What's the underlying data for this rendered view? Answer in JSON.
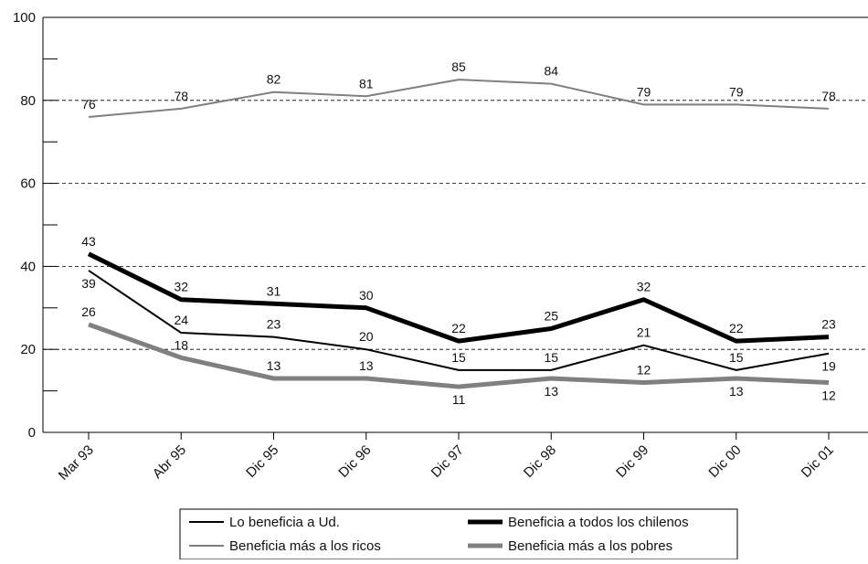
{
  "chart_data": {
    "type": "line",
    "categories": [
      "Mar 93",
      "Abr 95",
      "Dic 95",
      "Dic 96",
      "Dic 97",
      "Dic 98",
      "Dic 99",
      "Dic 00",
      "Dic 01"
    ],
    "ylim": [
      0,
      100
    ],
    "yticks": [
      0,
      20,
      40,
      60,
      80,
      100
    ],
    "minor_yticks": [
      10,
      30,
      50,
      70,
      90
    ],
    "grid": true,
    "legend": "bottom",
    "series": [
      {
        "name": "Lo beneficia a Ud.",
        "color": "#000000",
        "width": 2,
        "values": [
          39,
          24,
          23,
          20,
          15,
          15,
          21,
          15,
          19
        ]
      },
      {
        "name": "Beneficia a todos los chilenos",
        "color": "#000000",
        "width": 5,
        "values": [
          43,
          32,
          31,
          30,
          22,
          25,
          32,
          22,
          23
        ]
      },
      {
        "name": "Beneficia más a los ricos",
        "color": "#808080",
        "width": 2,
        "values": [
          76,
          78,
          82,
          81,
          85,
          84,
          79,
          79,
          78
        ]
      },
      {
        "name": "Beneficia más a los pobres",
        "color": "#808080",
        "width": 5,
        "values": [
          26,
          18,
          13,
          13,
          11,
          13,
          12,
          13,
          12
        ]
      }
    ]
  }
}
